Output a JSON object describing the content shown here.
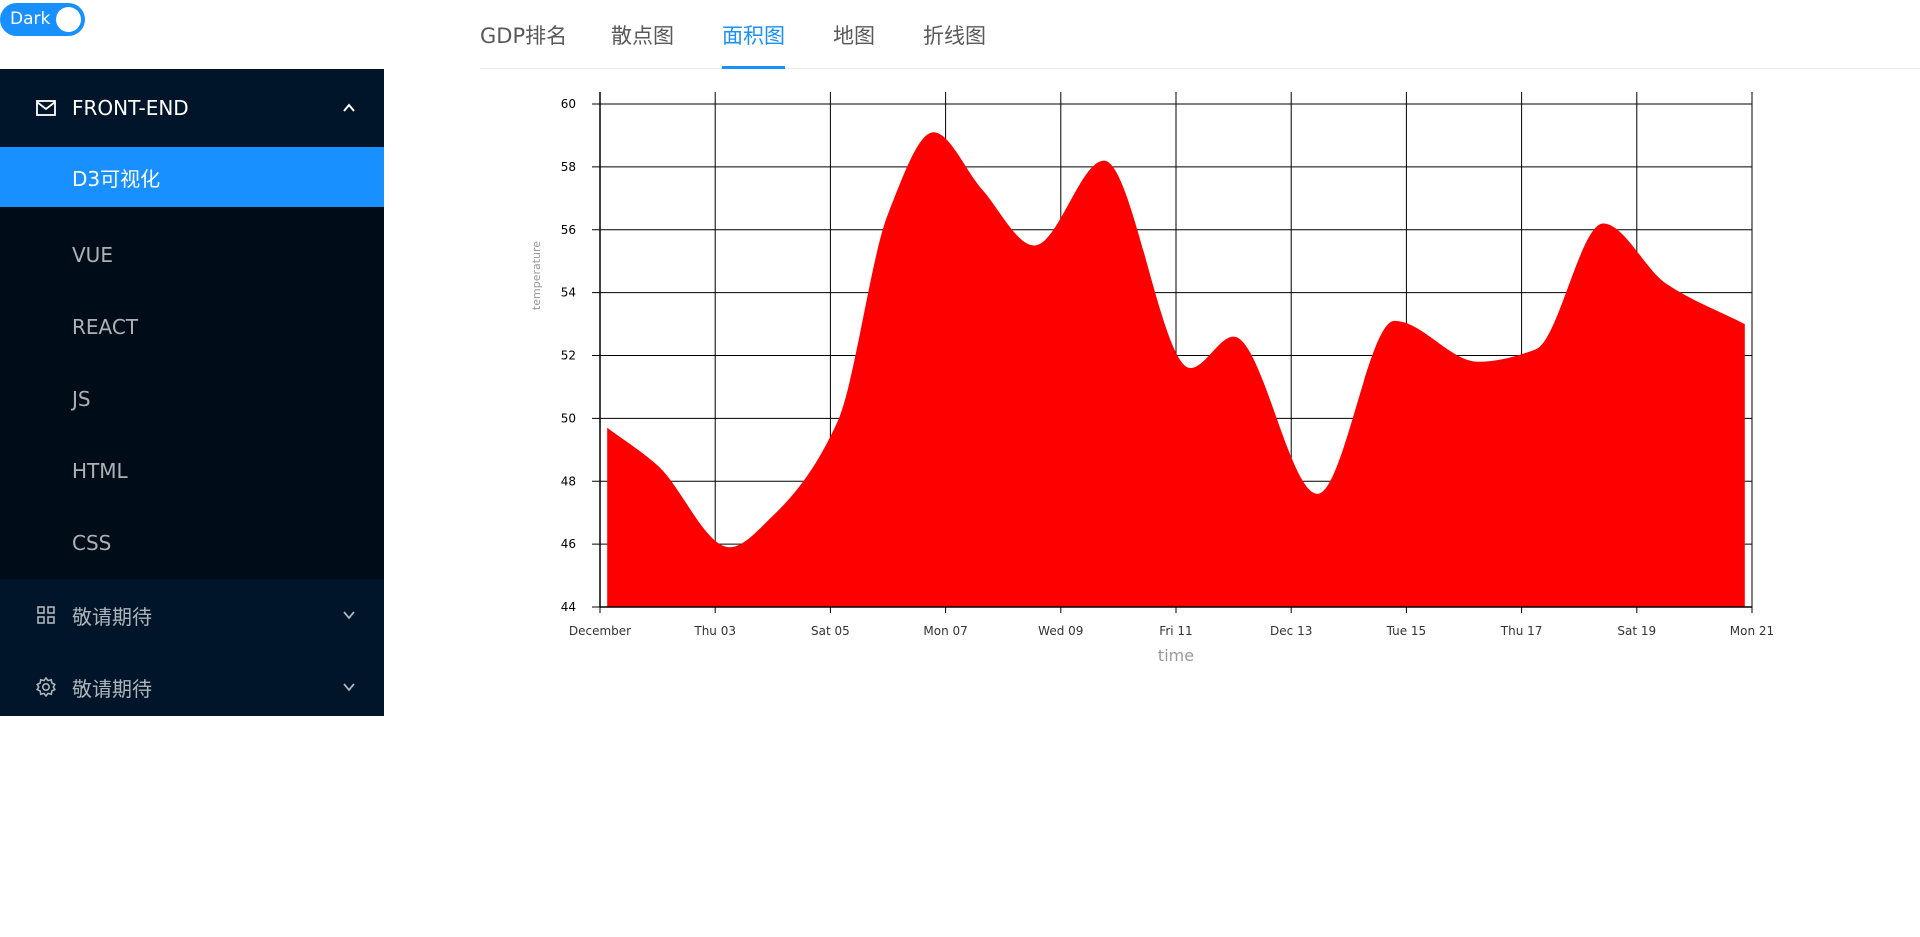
{
  "theme_switch": {
    "label": "Dark",
    "checked": true
  },
  "sidebar": {
    "groups": [
      {
        "label": "FRONT-END",
        "icon": "mail-icon",
        "open": true,
        "items": [
          {
            "label": "D3可视化",
            "selected": true
          },
          {
            "label": "VUE"
          },
          {
            "label": "REACT"
          },
          {
            "label": "JS"
          },
          {
            "label": "HTML"
          },
          {
            "label": "CSS"
          }
        ]
      },
      {
        "label": "敬请期待",
        "icon": "appstore-icon",
        "open": false
      },
      {
        "label": "敬请期待",
        "icon": "setting-icon",
        "open": false
      }
    ]
  },
  "tabs": [
    {
      "label": "GDP排名"
    },
    {
      "label": "散点图"
    },
    {
      "label": "面积图",
      "active": true
    },
    {
      "label": "地图"
    },
    {
      "label": "折线图"
    }
  ],
  "colors": {
    "accent": "#1890ff",
    "sidebar_bg": "#001529",
    "submenu_bg": "#000c17",
    "area_fill": "#ff0000"
  },
  "chart_data": {
    "type": "area",
    "xlabel": "time",
    "ylabel": "temperature",
    "ylim": [
      44,
      60
    ],
    "y_ticks": [
      44,
      46,
      48,
      50,
      52,
      54,
      56,
      58,
      60
    ],
    "x_range": [
      "2018-12-01",
      "2018-12-21"
    ],
    "x_ticks": [
      "December",
      "Thu 03",
      "Sat 05",
      "Mon 07",
      "Wed 09",
      "Fri 11",
      "Dec 13",
      "Tue 15",
      "Thu 17",
      "Sat 19",
      "Mon 21"
    ],
    "grid": true,
    "series": [
      {
        "x": [
          "2018-12-01T03:00",
          "2018-12-02T00:00",
          "2018-12-03T06:00",
          "2018-12-04T00:00",
          "2018-12-05T03:00",
          "2018-12-06T00:00",
          "2018-12-06T19:00",
          "2018-12-07T15:00",
          "2018-12-08T13:00",
          "2018-12-09T18:00",
          "2018-12-11T06:00",
          "2018-12-12T00:00",
          "2018-12-13T11:00",
          "2018-12-14T19:00",
          "2018-12-16T06:00",
          "2018-12-17T06:00",
          "2018-12-18T10:00",
          "2018-12-19T12:00",
          "2018-12-20T21:00"
        ],
        "values": [
          49.7,
          48.5,
          45.9,
          46.9,
          49.9,
          56.5,
          59.1,
          57.3,
          55.5,
          58.2,
          51.6,
          52.6,
          47.6,
          53.1,
          51.8,
          52.2,
          56.2,
          54.3,
          53.0
        ]
      }
    ]
  }
}
